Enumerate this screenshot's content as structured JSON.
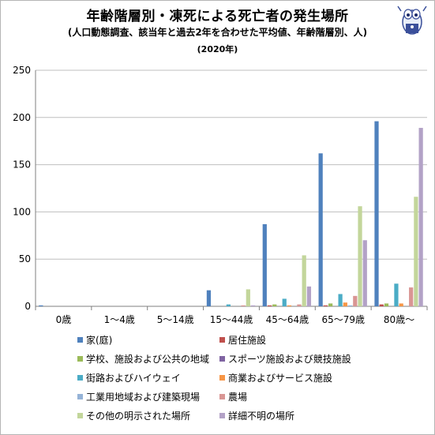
{
  "title": "年齢階層別・凍死による死亡者の発生場所",
  "subtitle": "(人口動態調査、該当年と過去2年を合わせた平均値、年齢階層別、人)",
  "year_note": "(2020年)",
  "chart_data": {
    "type": "bar",
    "categories": [
      "0歳",
      "1～4歳",
      "5～14歳",
      "15～44歳",
      "45～64歳",
      "65～79歳",
      "80歳～"
    ],
    "ylim": [
      0,
      250
    ],
    "yticks": [
      0,
      50,
      100,
      150,
      200,
      250
    ],
    "grid": "horizontal",
    "legend_position": "bottom",
    "series": [
      {
        "name": "家(庭)",
        "color": "#4f81bd",
        "values": [
          1,
          0,
          0,
          17,
          87,
          162,
          196
        ]
      },
      {
        "name": "居住施設",
        "color": "#c0504d",
        "values": [
          0,
          0,
          0,
          0,
          1,
          1,
          2
        ]
      },
      {
        "name": "学校、施設および公共の地域",
        "color": "#9bbb59",
        "values": [
          0,
          0,
          0,
          0,
          2,
          3,
          3
        ]
      },
      {
        "name": "スポーツ施設および競技施設",
        "color": "#8064a2",
        "values": [
          0,
          0,
          0,
          0,
          0,
          0,
          0
        ]
      },
      {
        "name": "街路およびハイウェイ",
        "color": "#4bacc6",
        "values": [
          0,
          0,
          0,
          2,
          8,
          13,
          24
        ]
      },
      {
        "name": "商業およびサービス施設",
        "color": "#f79646",
        "values": [
          0,
          0,
          0,
          0,
          1,
          4,
          3
        ]
      },
      {
        "name": "工業用地域および建築現場",
        "color": "#95b3d7",
        "values": [
          0,
          0,
          0,
          0,
          0,
          1,
          0
        ]
      },
      {
        "name": "農場",
        "color": "#d99694",
        "values": [
          0,
          0,
          0,
          1,
          2,
          11,
          20
        ]
      },
      {
        "name": "その他の明示された場所",
        "color": "#c3d69b",
        "values": [
          0,
          0,
          0,
          18,
          54,
          106,
          116
        ]
      },
      {
        "name": "詳細不明の場所",
        "color": "#b3a2c7",
        "values": [
          0,
          0,
          0,
          1,
          21,
          70,
          189
        ]
      }
    ]
  }
}
